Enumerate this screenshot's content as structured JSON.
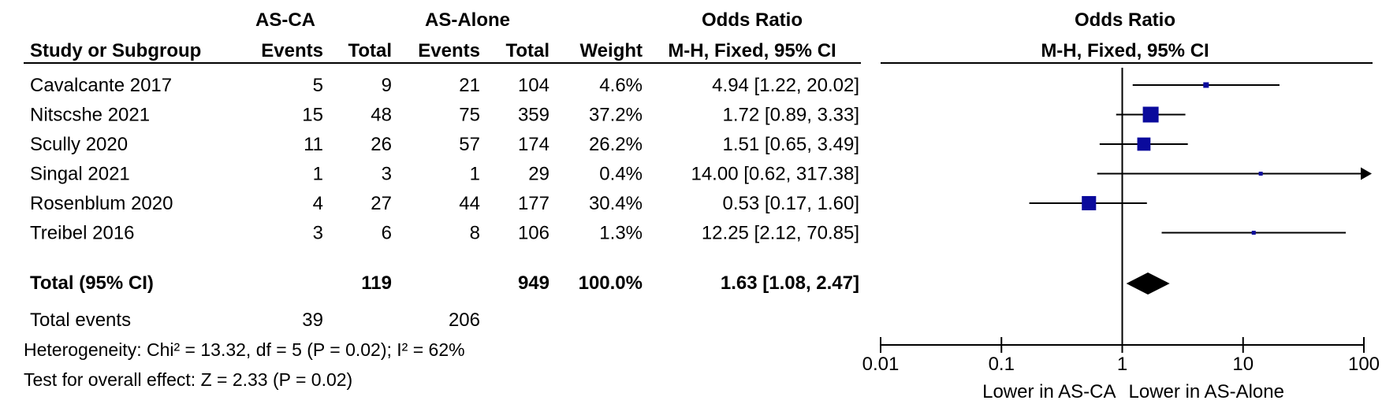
{
  "chart_data": {
    "type": "forest",
    "group_headers": {
      "experimental": "AS-CA",
      "control": "AS-Alone",
      "effect": "Odds Ratio"
    },
    "columns": {
      "study": "Study or Subgroup",
      "events": "Events",
      "total": "Total",
      "weight": "Weight",
      "method": "M-H, Fixed, 95% CI"
    },
    "plot_header": {
      "title": "Odds Ratio",
      "method": "M-H, Fixed, 95% CI"
    },
    "studies": [
      {
        "name": "Cavalcante 2017",
        "exp_events": "5",
        "exp_total": "9",
        "ctrl_events": "21",
        "ctrl_total": "104",
        "weight_label": "4.6%",
        "weight": 4.6,
        "or": 4.94,
        "lo": 1.22,
        "hi": 20.02,
        "ci_label": "4.94 [1.22, 20.02]"
      },
      {
        "name": "Nitscshe 2021",
        "exp_events": "15",
        "exp_total": "48",
        "ctrl_events": "75",
        "ctrl_total": "359",
        "weight_label": "37.2%",
        "weight": 37.2,
        "or": 1.72,
        "lo": 0.89,
        "hi": 3.33,
        "ci_label": "1.72 [0.89, 3.33]"
      },
      {
        "name": "Scully 2020",
        "exp_events": "11",
        "exp_total": "26",
        "ctrl_events": "57",
        "ctrl_total": "174",
        "weight_label": "26.2%",
        "weight": 26.2,
        "or": 1.51,
        "lo": 0.65,
        "hi": 3.49,
        "ci_label": "1.51 [0.65, 3.49]"
      },
      {
        "name": "Singal 2021",
        "exp_events": "1",
        "exp_total": "3",
        "ctrl_events": "1",
        "ctrl_total": "29",
        "weight_label": "0.4%",
        "weight": 0.4,
        "or": 14.0,
        "lo": 0.62,
        "hi": 317.38,
        "ci_label": "14.00 [0.62, 317.38]"
      },
      {
        "name": "Rosenblum 2020",
        "exp_events": "4",
        "exp_total": "27",
        "ctrl_events": "44",
        "ctrl_total": "177",
        "weight_label": "30.4%",
        "weight": 30.4,
        "or": 0.53,
        "lo": 0.17,
        "hi": 1.6,
        "ci_label": "0.53 [0.17, 1.60]"
      },
      {
        "name": "Treibel 2016",
        "exp_events": "3",
        "exp_total": "6",
        "ctrl_events": "8",
        "ctrl_total": "106",
        "weight_label": "1.3%",
        "weight": 1.3,
        "or": 12.25,
        "lo": 2.12,
        "hi": 70.85,
        "ci_label": "12.25 [2.12, 70.85]"
      }
    ],
    "total": {
      "label": "Total (95% CI)",
      "exp_total": "119",
      "ctrl_total": "949",
      "weight_label": "100.0%",
      "or": 1.63,
      "lo": 1.08,
      "hi": 2.47,
      "ci_label": "1.63 [1.08, 2.47]"
    },
    "total_events": {
      "label": "Total events",
      "exp": "39",
      "ctrl": "206"
    },
    "heterogeneity": "Heterogeneity: Chi² = 13.32, df = 5 (P = 0.02); I² = 62%",
    "overall_effect": "Test for overall effect: Z = 2.33 (P = 0.02)",
    "x_axis": {
      "scale": "log",
      "range": [
        0.01,
        100
      ],
      "reference": 1,
      "ticks": [
        0.01,
        0.1,
        1,
        10,
        100
      ],
      "tick_labels": [
        "0.01",
        "0.1",
        "1",
        "10",
        "100"
      ]
    },
    "favours_left": "Lower in AS-CA",
    "favours_right": "Lower in AS-Alone",
    "colors": {
      "study_marker": "#0a0a9c",
      "summary": "#000000",
      "ci_line": "#000000"
    }
  }
}
